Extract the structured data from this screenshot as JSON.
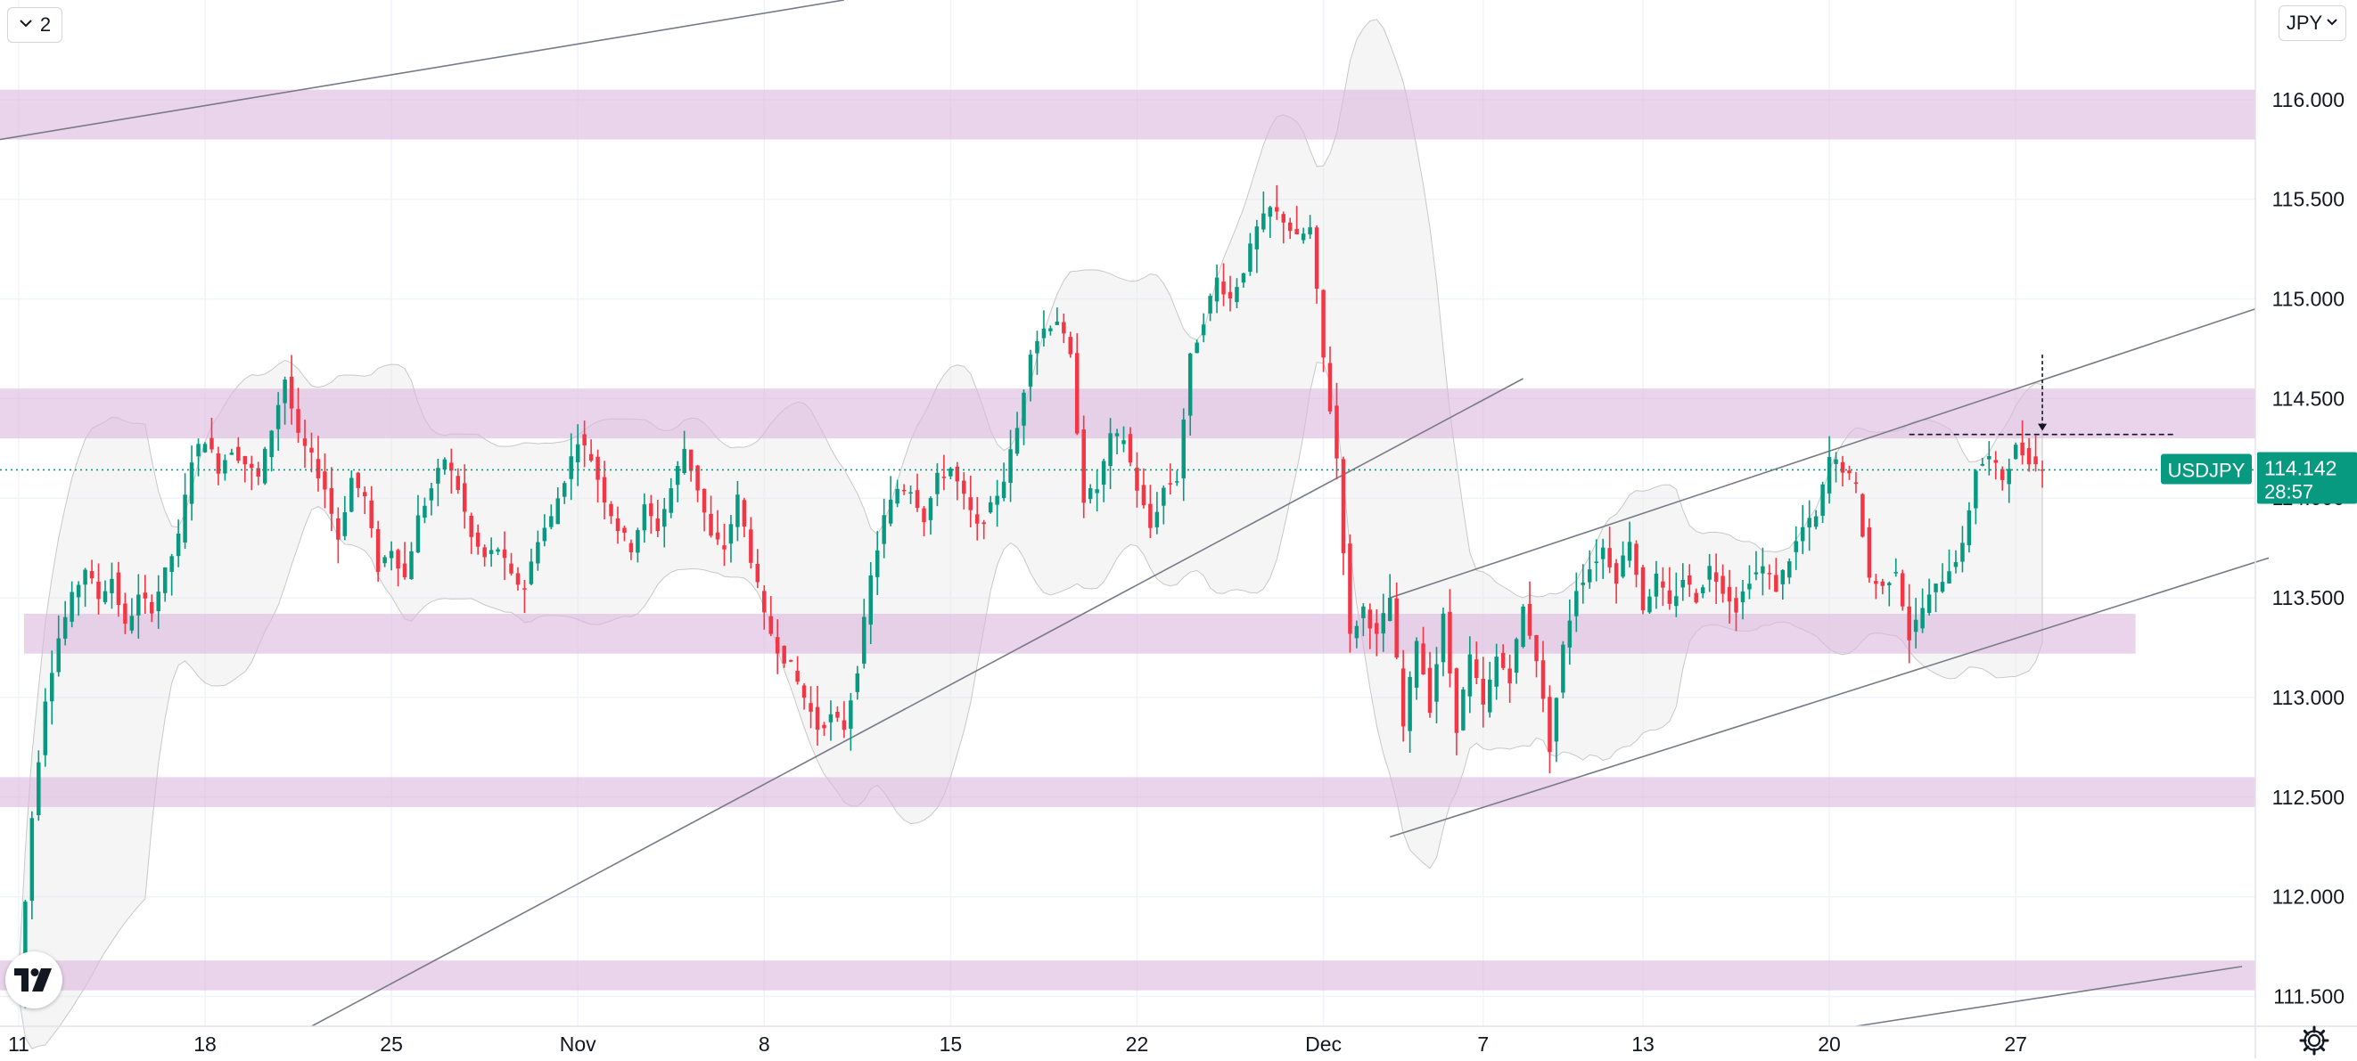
{
  "toolbar": {
    "layers_count": "2",
    "currency": "JPY"
  },
  "price_tag": {
    "symbol": "USDJPY",
    "price": "114.142",
    "countdown": "28:57"
  },
  "colors": {
    "up": "#089981",
    "down": "#f23645",
    "zone": "#dcb7e0",
    "band_fill": "#e6e6e6",
    "band_stroke": "#c8c8c8",
    "trendline": "#787b86",
    "grid": "#f0f3fa",
    "text": "#131722",
    "tag": "#089981"
  },
  "icons": [
    "chevron-down-icon",
    "tradingview-logo-icon",
    "gear-icon"
  ],
  "chart_data": {
    "type": "candlestick",
    "symbol": "USDJPY",
    "timeframe": "2",
    "ylim": [
      111.35,
      116.5
    ],
    "y_ticks": [
      "116.000",
      "115.500",
      "115.000",
      "114.500",
      "114.000",
      "113.500",
      "113.000",
      "112.500",
      "112.000",
      "111.500"
    ],
    "x_ticks": [
      {
        "label": "11",
        "x": 0
      },
      {
        "label": "18",
        "x": 7
      },
      {
        "label": "25",
        "x": 14
      },
      {
        "label": "Nov",
        "x": 21
      },
      {
        "label": "8",
        "x": 28
      },
      {
        "label": "15",
        "x": 35
      },
      {
        "label": "22",
        "x": 42
      },
      {
        "label": "Dec",
        "x": 49
      },
      {
        "label": "7",
        "x": 55
      },
      {
        "label": "13",
        "x": 61
      },
      {
        "label": "20",
        "x": 68
      },
      {
        "label": "27",
        "x": 75
      }
    ],
    "x_range": [
      -0.7,
      84
    ],
    "last_price": 114.142,
    "price_line": 114.142,
    "anchors": [
      [
        0.0,
        111.55
      ],
      [
        0.5,
        112.4
      ],
      [
        1.0,
        113.0
      ],
      [
        1.5,
        113.3
      ],
      [
        2.0,
        113.5
      ],
      [
        2.5,
        113.65
      ],
      [
        3.0,
        113.5
      ],
      [
        3.5,
        113.6
      ],
      [
        4.0,
        113.35
      ],
      [
        4.5,
        113.5
      ],
      [
        5.0,
        113.45
      ],
      [
        6.0,
        113.8
      ],
      [
        6.5,
        114.2
      ],
      [
        7.0,
        114.3
      ],
      [
        7.5,
        114.15
      ],
      [
        8.0,
        114.25
      ],
      [
        9.0,
        114.1
      ],
      [
        9.5,
        114.35
      ],
      [
        10.0,
        114.6
      ],
      [
        10.5,
        114.3
      ],
      [
        11.0,
        114.2
      ],
      [
        11.5,
        114.05
      ],
      [
        12.0,
        113.8
      ],
      [
        12.5,
        114.1
      ],
      [
        13.0,
        114.0
      ],
      [
        13.5,
        113.65
      ],
      [
        14.0,
        113.75
      ],
      [
        14.5,
        113.6
      ],
      [
        15.0,
        113.9
      ],
      [
        16.0,
        114.2
      ],
      [
        16.5,
        114.05
      ],
      [
        17.0,
        113.8
      ],
      [
        17.5,
        113.7
      ],
      [
        18.0,
        113.75
      ],
      [
        18.5,
        113.6
      ],
      [
        19.0,
        113.55
      ],
      [
        19.5,
        113.8
      ],
      [
        20.0,
        113.9
      ],
      [
        21.0,
        114.3
      ],
      [
        21.5,
        114.2
      ],
      [
        22.0,
        114.0
      ],
      [
        22.5,
        113.85
      ],
      [
        23.0,
        113.75
      ],
      [
        23.5,
        113.95
      ],
      [
        24.0,
        113.85
      ],
      [
        24.5,
        114.05
      ],
      [
        25.0,
        114.25
      ],
      [
        25.5,
        114.05
      ],
      [
        26.0,
        113.8
      ],
      [
        26.5,
        113.75
      ],
      [
        27.0,
        114.0
      ],
      [
        27.5,
        113.7
      ],
      [
        28.0,
        113.4
      ],
      [
        28.5,
        113.25
      ],
      [
        29.0,
        113.15
      ],
      [
        29.5,
        113.0
      ],
      [
        30.0,
        112.85
      ],
      [
        30.5,
        112.9
      ],
      [
        31.0,
        112.85
      ],
      [
        31.5,
        113.15
      ],
      [
        32.0,
        113.6
      ],
      [
        32.5,
        113.9
      ],
      [
        33.0,
        114.05
      ],
      [
        33.5,
        114.05
      ],
      [
        34.0,
        113.9
      ],
      [
        34.5,
        114.1
      ],
      [
        35.0,
        114.15
      ],
      [
        35.5,
        114.0
      ],
      [
        36.0,
        113.85
      ],
      [
        36.5,
        113.95
      ],
      [
        37.0,
        114.1
      ],
      [
        37.5,
        114.35
      ],
      [
        38.0,
        114.75
      ],
      [
        38.5,
        114.85
      ],
      [
        39.0,
        114.9
      ],
      [
        39.5,
        114.7
      ],
      [
        40.0,
        114.0
      ],
      [
        40.5,
        114.05
      ],
      [
        41.0,
        114.3
      ],
      [
        41.5,
        114.3
      ],
      [
        42.0,
        114.05
      ],
      [
        42.5,
        113.85
      ],
      [
        43.0,
        114.05
      ],
      [
        43.5,
        114.1
      ],
      [
        44.0,
        114.7
      ],
      [
        44.5,
        114.9
      ],
      [
        45.0,
        115.1
      ],
      [
        45.5,
        115.0
      ],
      [
        46.0,
        115.15
      ],
      [
        46.5,
        115.35
      ],
      [
        47.0,
        115.45
      ],
      [
        47.5,
        115.4
      ],
      [
        48.0,
        115.3
      ],
      [
        48.5,
        115.35
      ],
      [
        49.0,
        114.7
      ],
      [
        49.5,
        114.2
      ],
      [
        50.0,
        113.3
      ],
      [
        50.5,
        113.45
      ],
      [
        51.0,
        113.3
      ],
      [
        51.5,
        113.5
      ],
      [
        52.0,
        112.85
      ],
      [
        52.5,
        113.3
      ],
      [
        53.0,
        112.95
      ],
      [
        53.5,
        113.4
      ],
      [
        54.0,
        112.85
      ],
      [
        54.5,
        113.2
      ],
      [
        55.0,
        112.95
      ],
      [
        55.5,
        113.2
      ],
      [
        56.0,
        113.1
      ],
      [
        56.5,
        113.45
      ],
      [
        57.0,
        113.2
      ],
      [
        57.5,
        112.75
      ],
      [
        58.0,
        113.25
      ],
      [
        58.5,
        113.55
      ],
      [
        59.0,
        113.65
      ],
      [
        59.5,
        113.75
      ],
      [
        60.0,
        113.6
      ],
      [
        60.5,
        113.8
      ],
      [
        61.0,
        113.45
      ],
      [
        61.5,
        113.6
      ],
      [
        62.0,
        113.45
      ],
      [
        62.5,
        113.6
      ],
      [
        63.0,
        113.5
      ],
      [
        63.5,
        113.65
      ],
      [
        64.0,
        113.55
      ],
      [
        64.5,
        113.45
      ],
      [
        65.0,
        113.6
      ],
      [
        65.5,
        113.65
      ],
      [
        66.0,
        113.55
      ],
      [
        66.5,
        113.7
      ],
      [
        67.0,
        113.85
      ],
      [
        67.5,
        113.9
      ],
      [
        68.0,
        114.2
      ],
      [
        68.5,
        114.15
      ],
      [
        69.0,
        114.05
      ],
      [
        69.5,
        113.6
      ],
      [
        70.0,
        113.55
      ],
      [
        70.5,
        113.65
      ],
      [
        71.0,
        113.3
      ],
      [
        71.5,
        113.45
      ],
      [
        72.0,
        113.55
      ],
      [
        72.5,
        113.65
      ],
      [
        73.0,
        113.75
      ],
      [
        73.5,
        114.15
      ],
      [
        74.0,
        114.2
      ],
      [
        74.5,
        114.1
      ],
      [
        75.0,
        114.25
      ],
      [
        75.5,
        114.2
      ],
      [
        76.0,
        114.14
      ]
    ],
    "zones": [
      {
        "x0": -0.7,
        "x1": 84,
        "y0": 115.8,
        "y1": 116.05
      },
      {
        "x0": -0.7,
        "x1": 84,
        "y0": 114.3,
        "y1": 114.55
      },
      {
        "x0": 0.2,
        "x1": 79.5,
        "y0": 113.22,
        "y1": 113.42
      },
      {
        "x0": -0.7,
        "x1": 84,
        "y0": 112.45,
        "y1": 112.6
      },
      {
        "x0": -0.7,
        "x1": 84,
        "y0": 111.53,
        "y1": 111.68
      }
    ],
    "trendlines": [
      {
        "x0": -0.7,
        "y0": 115.8,
        "x1": 31.0,
        "y1": 116.5
      },
      {
        "x0": 11.0,
        "y0": 111.35,
        "x1": 56.5,
        "y1": 114.6
      },
      {
        "x0": 51.5,
        "y0": 113.5,
        "x1": 84.0,
        "y1": 114.95
      },
      {
        "x0": 51.5,
        "y0": 112.3,
        "x1": 84.5,
        "y1": 113.7
      },
      {
        "x0": 69.0,
        "y0": 111.35,
        "x1": 83.5,
        "y1": 111.65
      }
    ],
    "resistance_marker": {
      "x0": 71.0,
      "x1": 81.0,
      "y": 114.32,
      "arrow_x": 76.0,
      "arrow_top": 114.72
    }
  }
}
